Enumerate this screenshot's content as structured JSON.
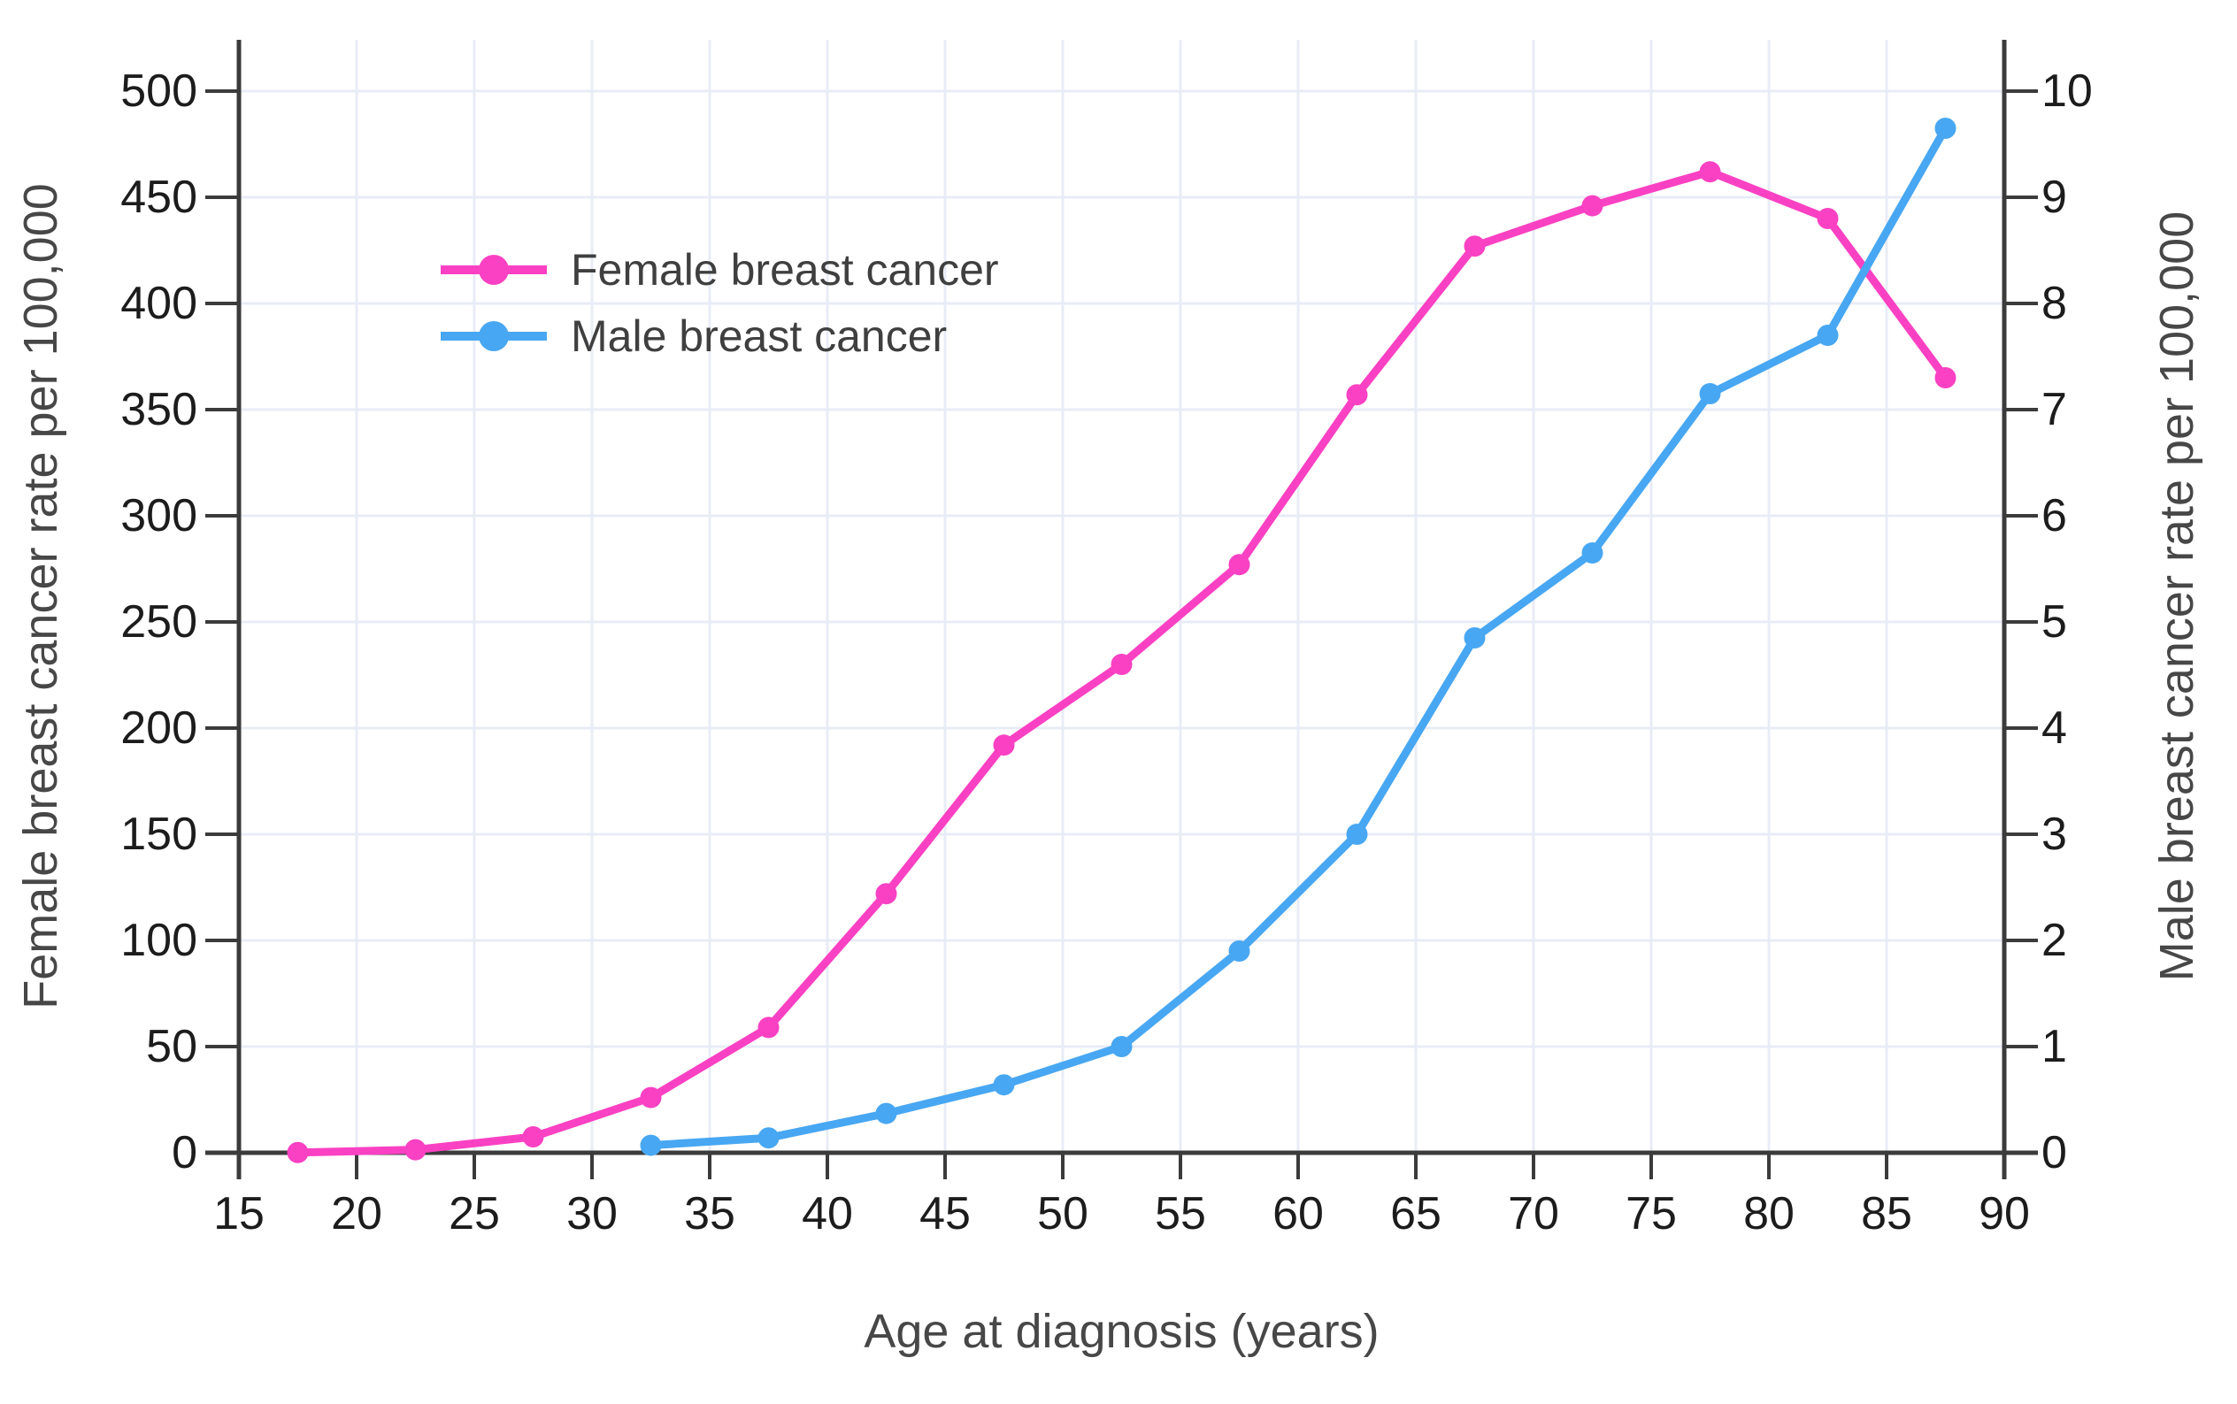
{
  "chart_data": {
    "type": "line",
    "title": "",
    "xlabel": "Age at diagnosis (years)",
    "ylabel_left": "Female breast cancer rate per 100,000",
    "ylabel_right": "Male breast cancer rate per 100,000",
    "xlim": [
      15,
      90
    ],
    "ylim_left": [
      0,
      500
    ],
    "ylim_right": [
      0,
      10
    ],
    "x_ticks": [
      15,
      20,
      25,
      30,
      35,
      40,
      45,
      50,
      55,
      60,
      65,
      70,
      75,
      80,
      85,
      90
    ],
    "y_left_ticks": [
      0,
      50,
      100,
      150,
      200,
      250,
      300,
      350,
      400,
      450,
      500
    ],
    "y_right_ticks": [
      0,
      1,
      2,
      3,
      4,
      5,
      6,
      7,
      8,
      9,
      10
    ],
    "grid": true,
    "legend_position": "inside-upper-left",
    "series": [
      {
        "name": "Female breast cancer",
        "axis": "left",
        "color": "#fa41c3",
        "x": [
          17.5,
          22.5,
          27.5,
          32.5,
          37.5,
          42.5,
          47.5,
          52.5,
          57.5,
          62.5,
          67.5,
          72.5,
          77.5,
          82.5,
          87.5
        ],
        "y": [
          0.1,
          1.4,
          7.5,
          26,
          59,
          122,
          192,
          230,
          277,
          357,
          427,
          446,
          462,
          440,
          365
        ]
      },
      {
        "name": "Male breast cancer",
        "axis": "right",
        "color": "#48a7f2",
        "x": [
          32.5,
          37.5,
          42.5,
          47.5,
          52.5,
          57.5,
          62.5,
          67.5,
          72.5,
          77.5,
          82.5,
          87.5
        ],
        "y": [
          0.07,
          0.14,
          0.37,
          0.64,
          1.0,
          1.9,
          3.0,
          4.85,
          5.65,
          7.15,
          7.7,
          9.65
        ]
      }
    ]
  },
  "colors": {
    "background": "#ffffff",
    "grid": "#e8ecf6",
    "axis": "#3b3b3b",
    "tick_text": "#1c1c1c",
    "title_text": "#474747",
    "legend_text": "#3f3f3f",
    "female": "#fa41c3",
    "male": "#48a7f2"
  }
}
